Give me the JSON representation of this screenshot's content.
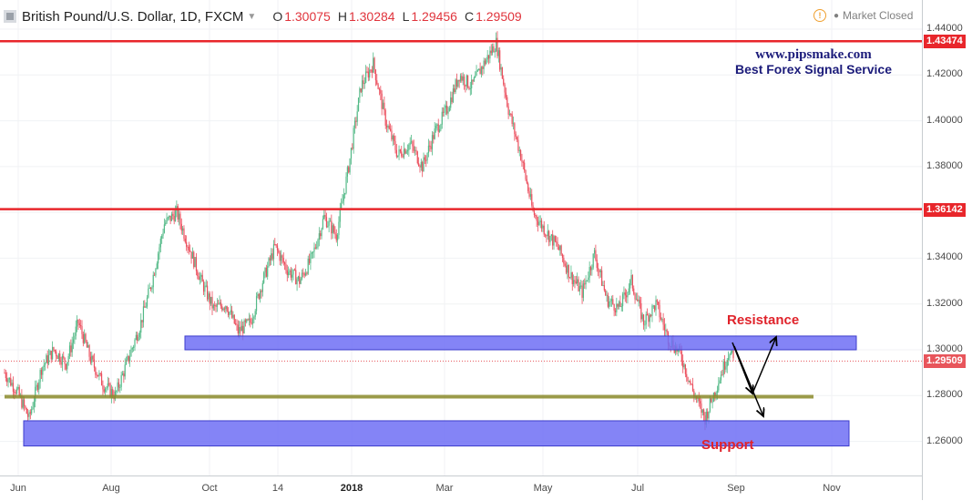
{
  "header": {
    "title": "British Pound/U.S. Dollar, 1D, FXCM",
    "open_label": "O",
    "open": "1.30075",
    "high_label": "H",
    "high": "1.30284",
    "low_label": "L",
    "low": "1.29456",
    "close_label": "C",
    "close": "1.29509"
  },
  "market_status": "Market Closed",
  "watermark": {
    "line1": "www.pipsmake.com",
    "line2": "Best Forex Signal Service"
  },
  "annotations": {
    "resistance": "Resistance",
    "support": "Support"
  },
  "price_axis": {
    "ticks": [
      "1.44000",
      "1.42000",
      "1.40000",
      "1.38000",
      "1.36000",
      "1.34000",
      "1.32000",
      "1.30000",
      "1.28000",
      "1.26000"
    ],
    "tick_values": [
      1.44,
      1.42,
      1.4,
      1.38,
      1.36,
      1.34,
      1.32,
      1.3,
      1.28,
      1.26
    ],
    "tags": [
      {
        "label": "1.43474",
        "value": 1.43474,
        "color": "#e8262b"
      },
      {
        "label": "1.36142",
        "value": 1.36142,
        "color": "#e8262b"
      },
      {
        "label": "1.29509",
        "value": 1.29509,
        "color": "#e8555b"
      }
    ]
  },
  "time_axis": {
    "labels": [
      {
        "text": "Jun",
        "bold": false
      },
      {
        "text": "Aug",
        "bold": false
      },
      {
        "text": "Oct",
        "bold": false
      },
      {
        "text": "14",
        "bold": false
      },
      {
        "text": "2018",
        "bold": true
      },
      {
        "text": "Mar",
        "bold": false
      },
      {
        "text": "May",
        "bold": false
      },
      {
        "text": "Jul",
        "bold": false
      },
      {
        "text": "Sep",
        "bold": false
      },
      {
        "text": "Nov",
        "bold": false
      }
    ]
  },
  "colors": {
    "up": "#53b987",
    "down": "#eb4d5c",
    "zone_fill": "#6f6ff5",
    "line": "#e8262b",
    "trend": "#8a8a2a"
  },
  "chart_data": {
    "type": "candlestick",
    "instrument": "British Pound/U.S. Dollar",
    "timeframe": "1D",
    "ylim": [
      1.25,
      1.445
    ],
    "horizontal_lines": [
      1.43474,
      1.36142
    ],
    "last_price": 1.29509,
    "support_zone": [
      1.258,
      1.269
    ],
    "resistance_zone": [
      1.3,
      1.306
    ],
    "trend_level": 1.2795,
    "path_points": [
      [
        0,
        1.29
      ],
      [
        10,
        1.282
      ],
      [
        20,
        1.27
      ],
      [
        30,
        1.292
      ],
      [
        40,
        1.3
      ],
      [
        50,
        1.294
      ],
      [
        60,
        1.312
      ],
      [
        70,
        1.296
      ],
      [
        80,
        1.285
      ],
      [
        90,
        1.28
      ],
      [
        100,
        1.295
      ],
      [
        110,
        1.31
      ],
      [
        120,
        1.33
      ],
      [
        130,
        1.355
      ],
      [
        140,
        1.36
      ],
      [
        150,
        1.345
      ],
      [
        160,
        1.33
      ],
      [
        170,
        1.318
      ],
      [
        180,
        1.32
      ],
      [
        190,
        1.308
      ],
      [
        200,
        1.312
      ],
      [
        210,
        1.33
      ],
      [
        220,
        1.345
      ],
      [
        230,
        1.335
      ],
      [
        240,
        1.33
      ],
      [
        250,
        1.34
      ],
      [
        260,
        1.358
      ],
      [
        270,
        1.35
      ],
      [
        280,
        1.38
      ],
      [
        290,
        1.415
      ],
      [
        300,
        1.425
      ],
      [
        310,
        1.4
      ],
      [
        320,
        1.385
      ],
      [
        330,
        1.39
      ],
      [
        340,
        1.38
      ],
      [
        350,
        1.395
      ],
      [
        360,
        1.405
      ],
      [
        370,
        1.42
      ],
      [
        380,
        1.415
      ],
      [
        390,
        1.425
      ],
      [
        400,
        1.434
      ],
      [
        410,
        1.405
      ],
      [
        420,
        1.385
      ],
      [
        430,
        1.36
      ],
      [
        440,
        1.352
      ],
      [
        450,
        1.345
      ],
      [
        460,
        1.333
      ],
      [
        470,
        1.325
      ],
      [
        480,
        1.342
      ],
      [
        490,
        1.322
      ],
      [
        500,
        1.318
      ],
      [
        510,
        1.33
      ],
      [
        520,
        1.312
      ],
      [
        530,
        1.32
      ],
      [
        540,
        1.305
      ],
      [
        550,
        1.298
      ],
      [
        560,
        1.282
      ],
      [
        570,
        1.27
      ],
      [
        580,
        1.285
      ],
      [
        590,
        1.3
      ],
      [
        593,
        1.2951
      ]
    ]
  }
}
